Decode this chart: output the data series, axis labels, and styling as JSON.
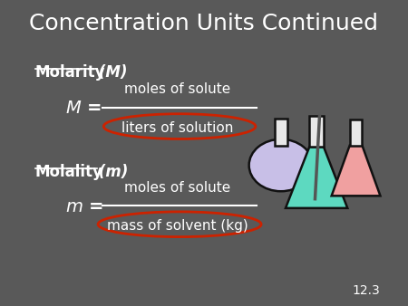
{
  "title": "Concentration Units Continued",
  "bg_color": "#595959",
  "text_color": "#ffffff",
  "title_fontsize": 20,
  "molarity_label": "Molarity",
  "molarity_italic": "(M)",
  "molality_label": "Molality",
  "molality_italic": "(m)",
  "m_upper_numerator": "moles of solute",
  "m_upper_denominator": "liters of solution",
  "m_lower_numerator": "moles of solute",
  "m_lower_denominator": "mass of solvent (kg)",
  "slide_number": "12.3",
  "ellipse_color": "#cc2200",
  "line_color": "#ffffff"
}
